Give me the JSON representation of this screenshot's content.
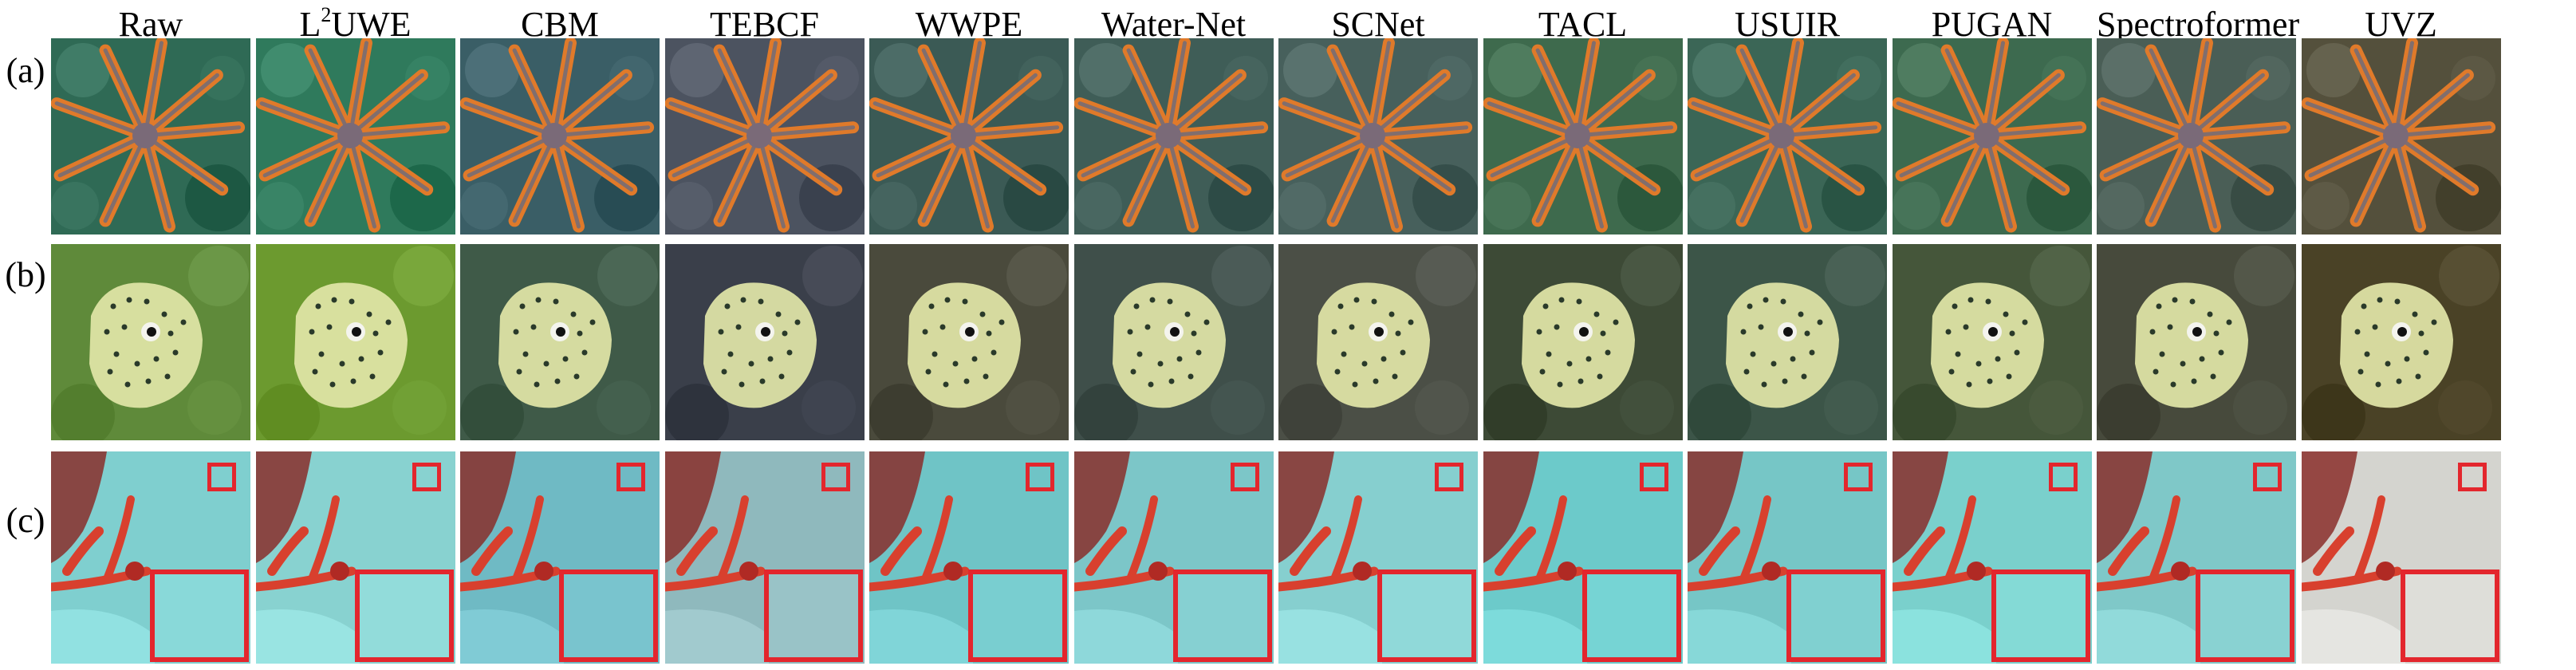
{
  "columns": [
    {
      "id": "raw",
      "title": "Raw",
      "tint": {
        "a": "#2f6a55",
        "b": "#5f8a3a",
        "c": "#7fcfcf"
      }
    },
    {
      "id": "l2uwe",
      "title_main": "L",
      "title_sup": "2",
      "title_rest": "UWE",
      "tint": {
        "a": "#2f7a5c",
        "b": "#6c9a2f",
        "c": "#88d2d0"
      }
    },
    {
      "id": "cbm",
      "title": "CBM",
      "tint": {
        "a": "#3a5e66",
        "b": "#3f5a48",
        "c": "#6fbac4"
      }
    },
    {
      "id": "tebcf",
      "title": "TEBCF",
      "tint": {
        "a": "#4c5360",
        "b": "#3a3f4a",
        "c": "#8fb9bd"
      }
    },
    {
      "id": "wwpe",
      "title": "WWPE",
      "tint": {
        "a": "#3b5a55",
        "b": "#4a4a3c",
        "c": "#6fc4c6"
      }
    },
    {
      "id": "waternet",
      "title": "Water-Net",
      "tint": {
        "a": "#3f5d57",
        "b": "#3f4f4a",
        "c": "#7cc6c8"
      }
    },
    {
      "id": "scnet",
      "title": "SCNet",
      "tint": {
        "a": "#47605c",
        "b": "#4b4f46",
        "c": "#86cfcf"
      }
    },
    {
      "id": "tacl",
      "title": "TACL",
      "tint": {
        "a": "#3e6a4d",
        "b": "#3d4a36",
        "c": "#6ccaca"
      }
    },
    {
      "id": "usuir",
      "title": "USUIR",
      "tint": {
        "a": "#3b6656",
        "b": "#3c5548",
        "c": "#76c6c6"
      }
    },
    {
      "id": "pugan",
      "title": "PUGAN",
      "tint": {
        "a": "#3d6a4f",
        "b": "#45563a",
        "c": "#7ad0cc"
      }
    },
    {
      "id": "spectroformer",
      "title": "Spectroformer",
      "tint": {
        "a": "#4a5e56",
        "b": "#474a3c",
        "c": "#7fc8c8"
      }
    },
    {
      "id": "uvz",
      "title": "UVZ",
      "tint": {
        "a": "#54503c",
        "b": "#4a4226",
        "c": "#d4d4cf"
      }
    }
  ],
  "rows": [
    {
      "id": "a",
      "label": "(a)"
    },
    {
      "id": "b",
      "label": "(b)"
    },
    {
      "id": "c",
      "label": "(c)"
    }
  ],
  "colors": {
    "zoom_box": "#e3262d",
    "starfish_orange": "#e07a2a",
    "fish_body": "#e2e6a8"
  }
}
